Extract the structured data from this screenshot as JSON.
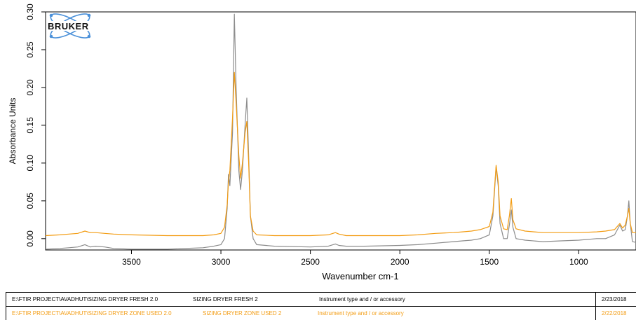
{
  "logo": {
    "text": "BRUKER"
  },
  "chart_data": {
    "type": "line",
    "title": "",
    "xlabel": "Wavenumber cm-1",
    "ylabel": "Absorbance Units",
    "xlim": [
      3980,
      680
    ],
    "ylim": [
      -0.015,
      0.3
    ],
    "x_reversed": true,
    "grid": false,
    "x_ticks": [
      3500,
      3000,
      2500,
      2000,
      1500,
      1000
    ],
    "y_ticks": [
      "0.00",
      "0.05",
      "0.10",
      "0.15",
      "0.20",
      "0.25",
      "0.30"
    ],
    "series": [
      {
        "name": "SIZING DRYER FRESH 2",
        "color": "#8c8c8c",
        "points": [
          [
            3980,
            -0.014
          ],
          [
            3900,
            -0.013
          ],
          [
            3850,
            -0.012
          ],
          [
            3800,
            -0.011
          ],
          [
            3760,
            -0.008
          ],
          [
            3730,
            -0.011
          ],
          [
            3700,
            -0.01
          ],
          [
            3650,
            -0.011
          ],
          [
            3600,
            -0.013
          ],
          [
            3500,
            -0.014
          ],
          [
            3300,
            -0.014
          ],
          [
            3100,
            -0.012
          ],
          [
            3040,
            -0.01
          ],
          [
            3000,
            -0.008
          ],
          [
            2980,
            0.0
          ],
          [
            2965,
            0.04
          ],
          [
            2958,
            0.085
          ],
          [
            2950,
            0.07
          ],
          [
            2935,
            0.14
          ],
          [
            2925,
            0.297
          ],
          [
            2915,
            0.2
          ],
          [
            2900,
            0.09
          ],
          [
            2890,
            0.065
          ],
          [
            2880,
            0.09
          ],
          [
            2865,
            0.15
          ],
          [
            2855,
            0.186
          ],
          [
            2845,
            0.11
          ],
          [
            2835,
            0.03
          ],
          [
            2820,
            0.0
          ],
          [
            2800,
            -0.008
          ],
          [
            2700,
            -0.01
          ],
          [
            2500,
            -0.011
          ],
          [
            2400,
            -0.01
          ],
          [
            2360,
            -0.007
          ],
          [
            2340,
            -0.009
          ],
          [
            2300,
            -0.01
          ],
          [
            2200,
            -0.01
          ],
          [
            2000,
            -0.009
          ],
          [
            1900,
            -0.008
          ],
          [
            1800,
            -0.006
          ],
          [
            1700,
            -0.004
          ],
          [
            1650,
            -0.003
          ],
          [
            1600,
            -0.002
          ],
          [
            1550,
            0.0
          ],
          [
            1500,
            0.005
          ],
          [
            1480,
            0.03
          ],
          [
            1462,
            0.095
          ],
          [
            1450,
            0.07
          ],
          [
            1440,
            0.02
          ],
          [
            1420,
            0.0
          ],
          [
            1400,
            0.0
          ],
          [
            1388,
            0.018
          ],
          [
            1377,
            0.038
          ],
          [
            1368,
            0.015
          ],
          [
            1350,
            0.0
          ],
          [
            1300,
            -0.002
          ],
          [
            1200,
            -0.004
          ],
          [
            1100,
            -0.003
          ],
          [
            1000,
            -0.002
          ],
          [
            900,
            0.0
          ],
          [
            850,
            0.0
          ],
          [
            800,
            0.005
          ],
          [
            770,
            0.018
          ],
          [
            755,
            0.01
          ],
          [
            740,
            0.012
          ],
          [
            728,
            0.03
          ],
          [
            720,
            0.05
          ],
          [
            712,
            0.02
          ],
          [
            700,
            -0.004
          ],
          [
            680,
            -0.005
          ]
        ]
      },
      {
        "name": "SIZING DRYER ZONE USED 2",
        "color": "#f39c12",
        "points": [
          [
            3980,
            0.004
          ],
          [
            3900,
            0.005
          ],
          [
            3850,
            0.006
          ],
          [
            3800,
            0.007
          ],
          [
            3760,
            0.01
          ],
          [
            3730,
            0.008
          ],
          [
            3700,
            0.008
          ],
          [
            3650,
            0.007
          ],
          [
            3600,
            0.006
          ],
          [
            3500,
            0.005
          ],
          [
            3300,
            0.004
          ],
          [
            3100,
            0.004
          ],
          [
            3040,
            0.005
          ],
          [
            3000,
            0.007
          ],
          [
            2980,
            0.015
          ],
          [
            2965,
            0.045
          ],
          [
            2958,
            0.075
          ],
          [
            2950,
            0.09
          ],
          [
            2935,
            0.16
          ],
          [
            2925,
            0.22
          ],
          [
            2915,
            0.18
          ],
          [
            2900,
            0.11
          ],
          [
            2890,
            0.08
          ],
          [
            2880,
            0.1
          ],
          [
            2865,
            0.14
          ],
          [
            2855,
            0.155
          ],
          [
            2845,
            0.1
          ],
          [
            2835,
            0.03
          ],
          [
            2820,
            0.01
          ],
          [
            2800,
            0.005
          ],
          [
            2700,
            0.004
          ],
          [
            2500,
            0.004
          ],
          [
            2400,
            0.005
          ],
          [
            2360,
            0.008
          ],
          [
            2340,
            0.006
          ],
          [
            2300,
            0.004
          ],
          [
            2200,
            0.004
          ],
          [
            2000,
            0.004
          ],
          [
            1900,
            0.005
          ],
          [
            1800,
            0.007
          ],
          [
            1700,
            0.008
          ],
          [
            1650,
            0.009
          ],
          [
            1600,
            0.01
          ],
          [
            1550,
            0.012
          ],
          [
            1500,
            0.016
          ],
          [
            1480,
            0.035
          ],
          [
            1462,
            0.097
          ],
          [
            1450,
            0.075
          ],
          [
            1440,
            0.03
          ],
          [
            1420,
            0.013
          ],
          [
            1400,
            0.012
          ],
          [
            1388,
            0.03
          ],
          [
            1377,
            0.053
          ],
          [
            1368,
            0.025
          ],
          [
            1350,
            0.013
          ],
          [
            1300,
            0.01
          ],
          [
            1200,
            0.008
          ],
          [
            1100,
            0.008
          ],
          [
            1000,
            0.008
          ],
          [
            900,
            0.009
          ],
          [
            850,
            0.01
          ],
          [
            800,
            0.012
          ],
          [
            770,
            0.02
          ],
          [
            755,
            0.014
          ],
          [
            740,
            0.018
          ],
          [
            728,
            0.03
          ],
          [
            720,
            0.04
          ],
          [
            712,
            0.02
          ],
          [
            700,
            0.008
          ],
          [
            680,
            0.008
          ]
        ]
      }
    ]
  },
  "legend_rows": [
    {
      "path": "E:\\FTIR PROJECT\\AVADHUT\\SIZING DRYER FRESH 2.0",
      "name": "SIZING DRYER FRESH 2",
      "instrument": "Instrument type and / or accessory",
      "date": "2/23/2018",
      "color": "#000000"
    },
    {
      "path": "E:\\FTIR PROJECT\\AVADHUT\\SIZING DRYER ZONE USED 2.0",
      "name": "SIZING DRYER ZONE USED 2",
      "instrument": "Instrument type and / or accessory",
      "date": "2/22/2018",
      "color": "#f39c12"
    }
  ]
}
